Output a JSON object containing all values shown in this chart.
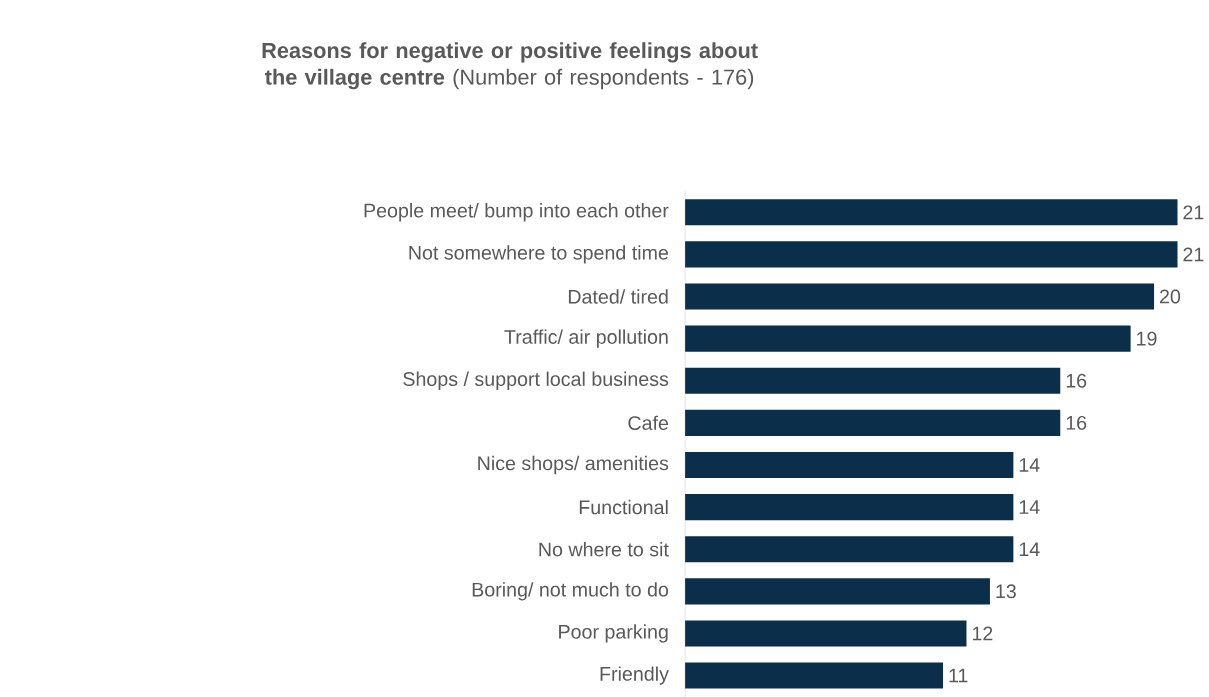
{
  "chart_data": {
    "type": "bar",
    "orientation": "horizontal",
    "title": "**Reasons for negative or positive feelings about the village centre** (Number of respondents - 176)",
    "categories": [
      "People meet/ bump into each other",
      "Not somewhere to spend time",
      "Dated/ tired",
      "Traffic/ air pollution",
      "Shops / support local business",
      "Cafe",
      "Nice shops/ amenities",
      "Functional",
      "No where to sit",
      "Boring/ not much to do",
      "Poor parking",
      "Friendly"
    ],
    "values": [
      21,
      21,
      20,
      19,
      16,
      16,
      14,
      14,
      14,
      13,
      12,
      11
    ],
    "color": "#0b2e4a",
    "data_labels": true
  }
}
